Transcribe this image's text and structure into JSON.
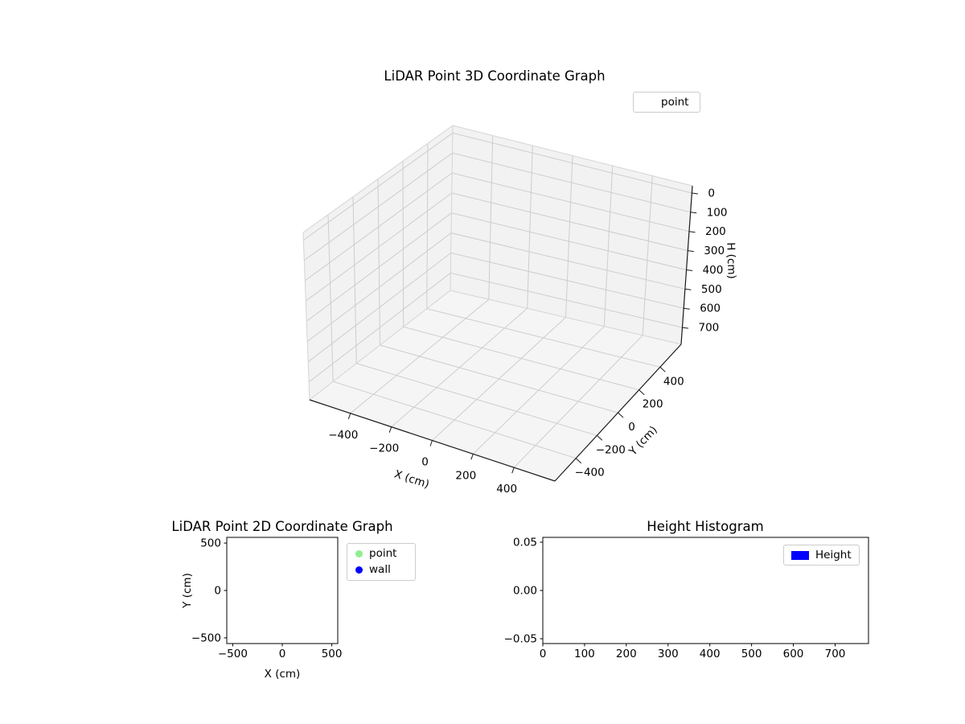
{
  "figure": {
    "background": "#ffffff"
  },
  "chart_data": [
    {
      "id": "lidar-3d",
      "type": "scatter3d",
      "title": "LiDAR Point 3D Coordinate Graph",
      "xlabel": "X (cm)",
      "ylabel": "Y (cm)",
      "zlabel": "H (cm)",
      "xlim": [
        -600,
        600
      ],
      "ylim": [
        -600,
        600
      ],
      "zlim": [
        -37.5,
        787.5
      ],
      "z_axis_inverted": true,
      "grid": true,
      "xtick_values": [
        -400,
        -200,
        0,
        200,
        400
      ],
      "xtick_labels": [
        "−400",
        "−200",
        "0",
        "200",
        "400"
      ],
      "ytick_values": [
        -400,
        -200,
        0,
        200,
        400
      ],
      "ytick_labels": [
        "−400",
        "−200",
        "0",
        "200",
        "400"
      ],
      "ztick_values": [
        0,
        100,
        200,
        300,
        400,
        500,
        600,
        700
      ],
      "ztick_labels": [
        "0",
        "100",
        "200",
        "300",
        "400",
        "500",
        "600",
        "700"
      ],
      "legend": [
        {
          "label": "point"
        }
      ],
      "legend_position": "upper right",
      "series": [
        {
          "name": "point",
          "points": []
        }
      ]
    },
    {
      "id": "lidar-2d",
      "type": "scatter",
      "title": "LiDAR Point 2D Coordinate Graph",
      "xlabel": "X (cm)",
      "ylabel": "Y (cm)",
      "xlim": [
        -560,
        560
      ],
      "ylim": [
        -560,
        560
      ],
      "grid": false,
      "xtick_values": [
        -500,
        0,
        500
      ],
      "xtick_labels": [
        "−500",
        "0",
        "500"
      ],
      "ytick_values": [
        -500,
        0,
        500
      ],
      "ytick_labels": [
        "−500",
        "0",
        "500"
      ],
      "legend": [
        {
          "label": "point",
          "color": "#90ee90",
          "marker": "circle"
        },
        {
          "label": "wall",
          "color": "#0000ff",
          "marker": "circle"
        }
      ],
      "legend_position": "outside right",
      "series": [
        {
          "name": "point",
          "points": []
        },
        {
          "name": "wall",
          "points": []
        }
      ]
    },
    {
      "id": "height-histogram",
      "type": "bar",
      "title": "Height Histogram",
      "xlabel": "",
      "ylabel": "",
      "xlim": [
        0,
        780
      ],
      "ylim": [
        -0.055,
        0.055
      ],
      "grid": false,
      "xtick_values": [
        0,
        100,
        200,
        300,
        400,
        500,
        600,
        700
      ],
      "xtick_labels": [
        "0",
        "100",
        "200",
        "300",
        "400",
        "500",
        "600",
        "700"
      ],
      "ytick_values": [
        -0.05,
        0,
        0.05
      ],
      "ytick_labels": [
        "−0.05",
        "0.00",
        "0.05"
      ],
      "legend": [
        {
          "label": "Height",
          "color": "#0000ff",
          "marker": "rect"
        }
      ],
      "legend_position": "upper right",
      "series": [
        {
          "name": "Height",
          "values": []
        }
      ]
    }
  ]
}
